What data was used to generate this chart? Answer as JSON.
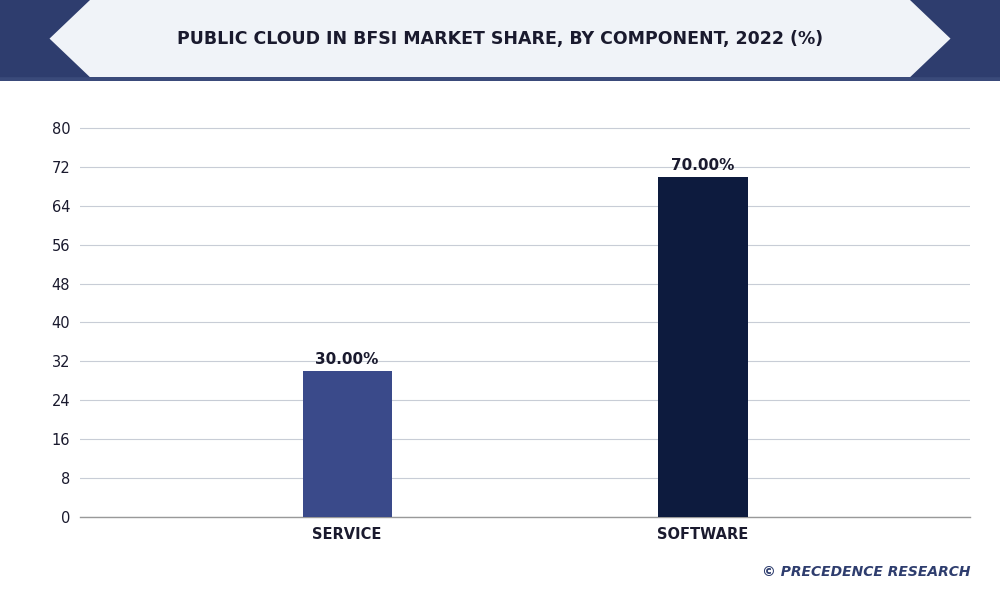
{
  "title": "PUBLIC CLOUD IN BFSI MARKET SHARE, BY COMPONENT, 2022 (%)",
  "categories": [
    "SERVICE",
    "SOFTWARE"
  ],
  "values": [
    30.0,
    70.0
  ],
  "bar_colors": [
    "#3a4a8a",
    "#0d1b3e"
  ],
  "bar_labels": [
    "30.00%",
    "70.00%"
  ],
  "ylim": [
    0,
    88
  ],
  "yticks": [
    0,
    8,
    16,
    24,
    32,
    40,
    48,
    56,
    64,
    72,
    80
  ],
  "background_color": "#ffffff",
  "plot_bg_color": "#ffffff",
  "grid_color": "#c8cdd6",
  "title_color": "#1a1a2e",
  "axis_label_color": "#1a1a2e",
  "bar_label_color": "#1a1a2e",
  "watermark": "© PRECEDENCE RESEARCH",
  "title_fontsize": 12.5,
  "label_fontsize": 11,
  "tick_fontsize": 10.5,
  "watermark_fontsize": 10,
  "header_bg_color": "#f0f3f8",
  "header_accent_color": "#2e3d6e",
  "bar_positions": [
    0.3,
    0.7
  ],
  "bar_width": 0.1,
  "xlim": [
    0,
    1
  ]
}
